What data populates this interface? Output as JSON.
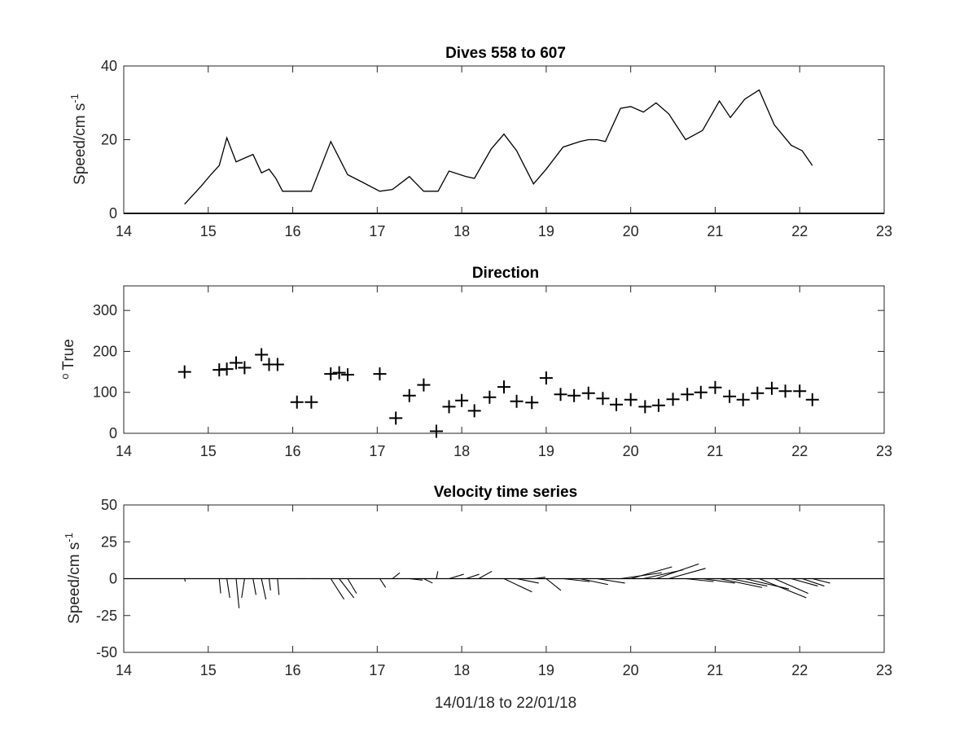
{
  "chart_data": [
    {
      "type": "line",
      "title": "Dives 558 to 607",
      "ylabel": "Speed/cm s",
      "ylabel_exponent": "-1",
      "xlim": [
        14,
        23
      ],
      "ylim": [
        0,
        40
      ],
      "x_ticks": [
        "14",
        "15",
        "16",
        "17",
        "18",
        "19",
        "20",
        "21",
        "22",
        "23"
      ],
      "y_ticks": [
        "0",
        "20",
        "40"
      ],
      "grid": false,
      "series": [
        {
          "x": [
            14.72,
            14.82,
            14.92,
            15.03,
            15.13,
            15.22,
            15.33,
            15.43,
            15.53,
            15.63,
            15.72,
            15.8,
            15.88,
            16.05,
            16.22,
            16.45,
            16.55,
            16.65,
            16.82,
            17.03,
            17.18,
            17.38,
            17.55,
            17.72,
            17.85,
            18.05,
            18.15,
            18.35,
            18.5,
            18.65,
            18.85,
            19.0,
            19.2,
            19.4,
            19.5,
            19.6,
            19.7,
            19.88,
            20.0,
            20.15,
            20.3,
            20.45,
            20.65,
            20.85,
            21.05,
            21.18,
            21.35,
            21.52,
            21.7,
            21.9,
            22.03,
            22.15
          ],
          "y": [
            2.5,
            5,
            7.5,
            10.5,
            13,
            20.5,
            14,
            15,
            16,
            11,
            12,
            9.5,
            6,
            6,
            6,
            19.5,
            15,
            10.5,
            8.5,
            6,
            6.5,
            10,
            6,
            6,
            11.5,
            10,
            9.5,
            17.5,
            21.5,
            17,
            8,
            12,
            18,
            19.5,
            20,
            20,
            19.5,
            28.5,
            29,
            27.5,
            30,
            27,
            20,
            22.5,
            30.5,
            26,
            31,
            33.5,
            24,
            18.5,
            17,
            13
          ]
        }
      ]
    },
    {
      "type": "scatter",
      "title": "Direction",
      "ylabel": "True",
      "ylabel_prefix": "o",
      "xlim": [
        14,
        23
      ],
      "ylim": [
        0,
        360
      ],
      "x_ticks": [
        "14",
        "15",
        "16",
        "17",
        "18",
        "19",
        "20",
        "21",
        "22",
        "23"
      ],
      "y_ticks": [
        "0",
        "100",
        "200",
        "300"
      ],
      "grid": false,
      "marker": "+",
      "series": [
        {
          "x": [
            14.72,
            15.13,
            15.22,
            15.33,
            15.43,
            15.63,
            15.72,
            15.82,
            16.05,
            16.22,
            16.45,
            16.55,
            16.65,
            17.03,
            17.22,
            17.38,
            17.55,
            17.7,
            17.85,
            18.0,
            18.15,
            18.33,
            18.5,
            18.65,
            18.83,
            19.0,
            19.17,
            19.33,
            19.5,
            19.67,
            19.83,
            20.0,
            20.17,
            20.33,
            20.5,
            20.67,
            20.83,
            21.0,
            21.17,
            21.33,
            21.5,
            21.67,
            21.83,
            22.0,
            22.15
          ],
          "y": [
            150,
            155,
            157,
            172,
            160,
            192,
            168,
            168,
            76,
            76,
            145,
            148,
            143,
            145,
            37,
            92,
            118,
            5,
            65,
            80,
            55,
            88,
            113,
            78,
            75,
            135,
            95,
            92,
            98,
            85,
            70,
            82,
            65,
            68,
            83,
            95,
            100,
            112,
            90,
            82,
            98,
            110,
            103,
            103,
            82
          ]
        }
      ]
    },
    {
      "type": "vector",
      "title": "Velocity time series",
      "xlabel": "14/01/18 to 22/01/18",
      "ylabel": "Speed/cm s",
      "ylabel_exponent": "-1",
      "xlim": [
        14,
        23
      ],
      "ylim": [
        -50,
        50
      ],
      "x_ticks": [
        "14",
        "15",
        "16",
        "17",
        "18",
        "19",
        "20",
        "21",
        "22",
        "23"
      ],
      "y_ticks": [
        "-50",
        "-25",
        "0",
        "25",
        "50"
      ],
      "grid": false,
      "baseline": 0,
      "vectors": [
        {
          "t": 14.72,
          "u": 0.5,
          "v": -2
        },
        {
          "t": 15.13,
          "u": 1,
          "v": -10
        },
        {
          "t": 15.22,
          "u": 2,
          "v": -13
        },
        {
          "t": 15.33,
          "u": 2,
          "v": -20
        },
        {
          "t": 15.43,
          "u": -2,
          "v": -13
        },
        {
          "t": 15.53,
          "u": 2,
          "v": -11
        },
        {
          "t": 15.63,
          "u": 3,
          "v": -14
        },
        {
          "t": 15.72,
          "u": 1,
          "v": -8
        },
        {
          "t": 15.82,
          "u": 1,
          "v": -11
        },
        {
          "t": 16.05,
          "u": 6,
          "v": 0
        },
        {
          "t": 16.22,
          "u": 6,
          "v": 0
        },
        {
          "t": 16.45,
          "u": 9,
          "v": -14
        },
        {
          "t": 16.55,
          "u": 10,
          "v": -13
        },
        {
          "t": 16.65,
          "u": 6,
          "v": -10
        },
        {
          "t": 17.03,
          "u": 4,
          "v": -6
        },
        {
          "t": 17.18,
          "u": 5,
          "v": 4
        },
        {
          "t": 17.38,
          "u": 9,
          "v": -1
        },
        {
          "t": 17.55,
          "u": 6,
          "v": -3
        },
        {
          "t": 17.7,
          "u": 1,
          "v": 5
        },
        {
          "t": 17.85,
          "u": 10,
          "v": 3
        },
        {
          "t": 18.05,
          "u": 9,
          "v": 3
        },
        {
          "t": 18.2,
          "u": 9,
          "v": 5
        },
        {
          "t": 18.5,
          "u": 19,
          "v": -9
        },
        {
          "t": 18.65,
          "u": 15,
          "v": -3
        },
        {
          "t": 18.85,
          "u": 8,
          "v": 1
        },
        {
          "t": 19.0,
          "u": 10,
          "v": -8
        },
        {
          "t": 19.2,
          "u": 18,
          "v": -2
        },
        {
          "t": 19.4,
          "u": 19,
          "v": -4
        },
        {
          "t": 19.6,
          "u": 19,
          "v": -3
        },
        {
          "t": 19.88,
          "u": 28,
          "v": 4
        },
        {
          "t": 20.0,
          "u": 28,
          "v": 8
        },
        {
          "t": 20.15,
          "u": 27,
          "v": 6
        },
        {
          "t": 20.3,
          "u": 29,
          "v": 10
        },
        {
          "t": 20.45,
          "u": 25,
          "v": 7
        },
        {
          "t": 20.65,
          "u": 19,
          "v": -2
        },
        {
          "t": 20.85,
          "u": 22,
          "v": -3
        },
        {
          "t": 21.05,
          "u": 29,
          "v": -6
        },
        {
          "t": 21.18,
          "u": 25,
          "v": -5
        },
        {
          "t": 21.35,
          "u": 30,
          "v": -7
        },
        {
          "t": 21.52,
          "u": 32,
          "v": -13
        },
        {
          "t": 21.7,
          "u": 23,
          "v": -10
        },
        {
          "t": 21.9,
          "u": 18,
          "v": -5
        },
        {
          "t": 22.03,
          "u": 15,
          "v": -5
        },
        {
          "t": 22.15,
          "u": 12,
          "v": -3
        }
      ]
    }
  ]
}
